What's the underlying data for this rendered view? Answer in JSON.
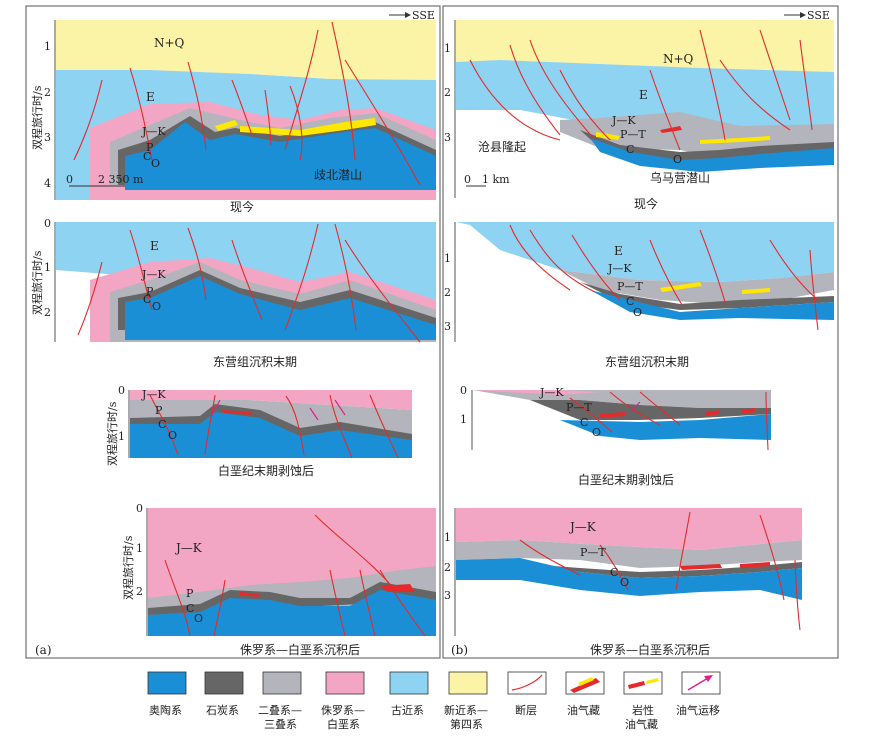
{
  "direction_label": "SSE",
  "axis_title": "双程旅行时/s",
  "panel_letters": {
    "a": "(a)",
    "b": "(b)"
  },
  "panels_a": {
    "ticks_present": [
      "1",
      "2",
      "3",
      "4"
    ],
    "ticks_2": [
      "0",
      "1",
      "2"
    ],
    "ticks_3": [
      "0",
      "1"
    ],
    "ticks_4": [
      "0",
      "1",
      "2"
    ],
    "caption_present": "现今",
    "caption_dongying": "东营组沉积末期",
    "caption_cretaceous": "白垩纪末期剥蚀后",
    "caption_jurassic": "侏罗系—白垩系沉积后",
    "scale_zero": "0",
    "scale_label": "2 350 m",
    "buried_hill": "歧北潜山",
    "layers": {
      "nq": "N+Q",
      "e": "E",
      "jk": "J—K",
      "p": "P",
      "c": "C",
      "o": "O"
    }
  },
  "panels_b": {
    "ticks_present": [
      "1",
      "2",
      "3"
    ],
    "ticks_2": [
      "1",
      "2",
      "3"
    ],
    "ticks_3": [
      "0",
      "1"
    ],
    "ticks_4": [
      "1",
      "2",
      "3"
    ],
    "caption_present": "现今",
    "caption_dongying": "东营组沉积末期",
    "caption_cretaceous": "白垩纪末期剥蚀后",
    "caption_jurassic": "侏罗系—白垩系沉积后",
    "scale_zero": "0",
    "scale_label": "1 km",
    "uplift": "沧县隆起",
    "buried_hill": "乌马营潜山",
    "layers": {
      "nq": "N+Q",
      "e": "E",
      "jk": "J—K",
      "pt": "P—T",
      "c": "C",
      "o": "O"
    }
  },
  "legend": [
    {
      "id": "ordovician",
      "label1": "奥陶系",
      "label2": "",
      "color": "#1a8fd6"
    },
    {
      "id": "carboniferous",
      "label1": "石炭系",
      "label2": "",
      "color": "#666666"
    },
    {
      "id": "permian-triassic",
      "label1": "二叠系—",
      "label2": "三叠系",
      "color": "#b4b4bc"
    },
    {
      "id": "jurassic-cretaceous",
      "label1": "侏罗系—",
      "label2": "白垩系",
      "color": "#f2a6c4"
    },
    {
      "id": "paleogene",
      "label1": "古近系",
      "label2": "",
      "color": "#8fd3f3"
    },
    {
      "id": "neogene-quaternary",
      "label1": "新近系—",
      "label2": "第四系",
      "color": "#fbf3a6"
    },
    {
      "id": "fault",
      "label1": "断层",
      "label2": "",
      "color": "#e32b2b"
    },
    {
      "id": "reservoir",
      "label1": "油气藏",
      "label2": "",
      "color": "#e32b2b"
    },
    {
      "id": "lithologic-reservoir",
      "label1": "岩性",
      "label2": "油气藏",
      "color": "#ffe800"
    },
    {
      "id": "migration",
      "label1": "油气运移",
      "label2": "",
      "color": "#e0218a"
    }
  ]
}
